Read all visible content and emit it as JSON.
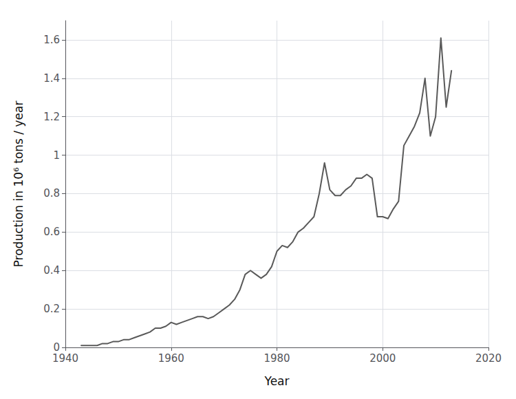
{
  "chart_data": {
    "type": "line",
    "x": [
      1943,
      1944,
      1945,
      1946,
      1947,
      1948,
      1949,
      1950,
      1951,
      1952,
      1953,
      1954,
      1955,
      1956,
      1957,
      1958,
      1959,
      1960,
      1961,
      1962,
      1963,
      1964,
      1965,
      1966,
      1967,
      1968,
      1969,
      1970,
      1971,
      1972,
      1973,
      1974,
      1975,
      1976,
      1977,
      1978,
      1979,
      1980,
      1981,
      1982,
      1983,
      1984,
      1985,
      1986,
      1987,
      1988,
      1989,
      1990,
      1991,
      1992,
      1993,
      1994,
      1995,
      1996,
      1997,
      1998,
      1999,
      2000,
      2001,
      2002,
      2003,
      2004,
      2005,
      2006,
      2007,
      2008,
      2009,
      2010,
      2011,
      2012,
      2013
    ],
    "values": [
      0.01,
      0.01,
      0.01,
      0.01,
      0.02,
      0.02,
      0.03,
      0.03,
      0.04,
      0.04,
      0.05,
      0.06,
      0.07,
      0.08,
      0.1,
      0.1,
      0.11,
      0.13,
      0.12,
      0.13,
      0.14,
      0.15,
      0.16,
      0.16,
      0.15,
      0.16,
      0.18,
      0.2,
      0.22,
      0.25,
      0.3,
      0.38,
      0.4,
      0.38,
      0.36,
      0.38,
      0.42,
      0.5,
      0.53,
      0.52,
      0.55,
      0.6,
      0.62,
      0.65,
      0.68,
      0.8,
      0.96,
      0.82,
      0.79,
      0.79,
      0.82,
      0.84,
      0.88,
      0.88,
      0.9,
      0.88,
      0.68,
      0.68,
      0.67,
      0.72,
      0.76,
      1.05,
      1.1,
      1.15,
      1.22,
      1.4,
      1.1,
      1.2,
      1.61,
      1.25,
      1.44
    ],
    "color": "#595959",
    "xlabel": "Year",
    "ylabel": "Production in 10⁶ tons / year",
    "xlim": [
      1940,
      2020
    ],
    "ylim": [
      0.0,
      1.7
    ],
    "xticks": [
      1940,
      1960,
      1980,
      2000,
      2020
    ],
    "yticks": [
      0,
      0.2,
      0.4,
      0.6,
      0.8,
      1,
      1.2,
      1.4,
      1.6
    ],
    "grid": true
  }
}
